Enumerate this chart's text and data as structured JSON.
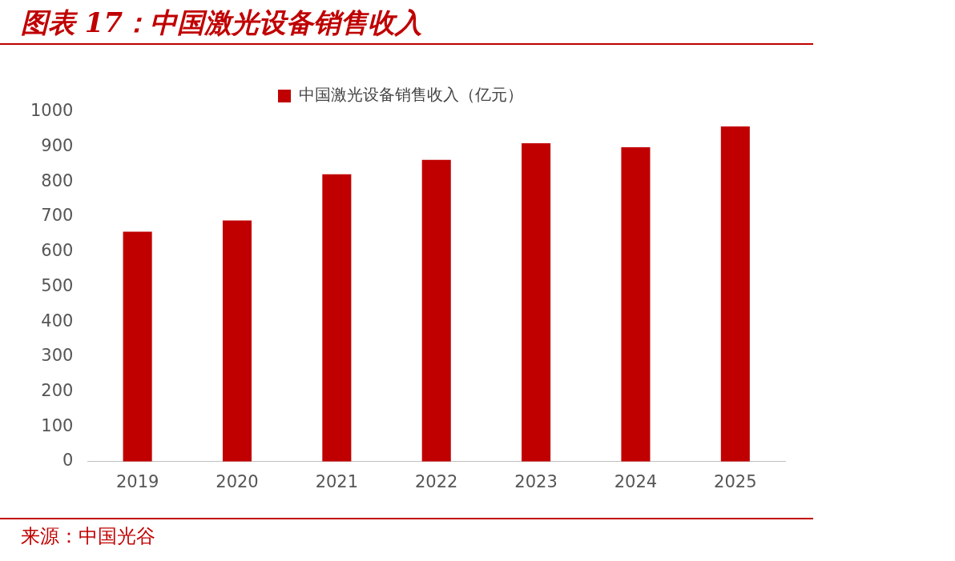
{
  "chart_data": {
    "type": "bar",
    "title": "图表 17：中国激光设备销售收入",
    "categories": [
      "2019",
      "2020",
      "2021",
      "2022",
      "2023",
      "2024",
      "2025"
    ],
    "series": [
      {
        "name": "中国激光设备销售收入（亿元）",
        "color": "#c00000",
        "values": [
          658,
          690,
          822,
          863,
          911,
          899,
          959
        ]
      }
    ],
    "ylim": [
      0,
      1000
    ],
    "yticks": [
      0,
      100,
      200,
      300,
      400,
      500,
      600,
      700,
      800,
      900,
      1000
    ],
    "grid": false,
    "legend": "top",
    "annotations": [
      "来源：中国光谷"
    ]
  }
}
